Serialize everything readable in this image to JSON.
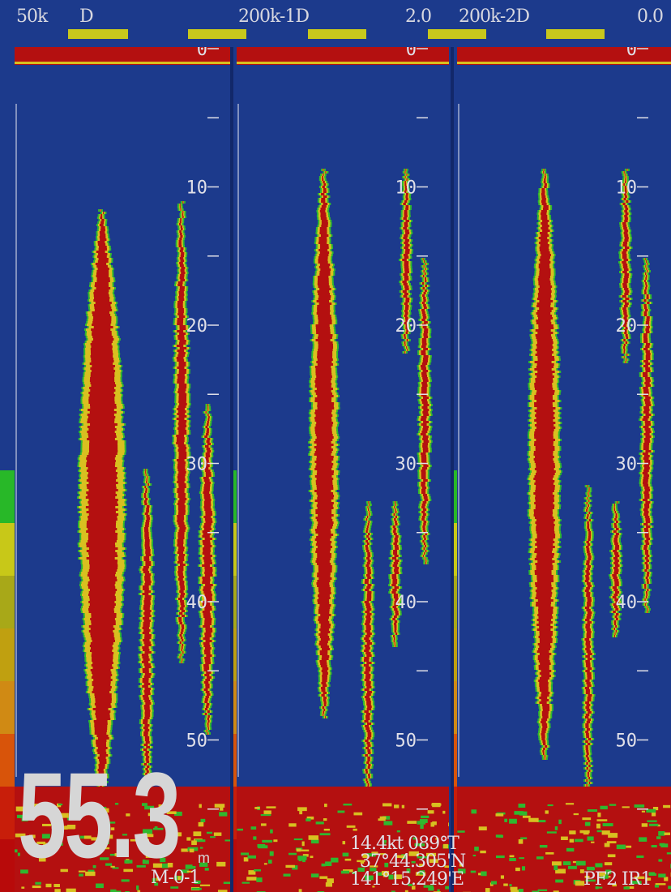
{
  "header": {
    "ch1_freq": "50k",
    "ch1_mode": "D",
    "ch2_label": "200k-1D",
    "ch2_value": "2.0",
    "ch3_label": "200k-2D",
    "ch3_value": "0.0"
  },
  "scale": {
    "depth_labels": [
      "0",
      "10",
      "20",
      "30",
      "40",
      "50"
    ]
  },
  "readouts": {
    "depth_value": "55.3",
    "depth_unit": "m",
    "mode_code": "M-0-1",
    "speed_heading": "14.4kt 089°T",
    "latitude": "37°44.305'N",
    "longitude": "141°15.249'E",
    "status_code": "PF2  IR1"
  },
  "colors": {
    "background": "#1c3a8c",
    "strong_echo": "#b41010",
    "medium_echo": "#d8c020",
    "weak_echo": "#2fb82f",
    "gain_bar": "#c8c81c"
  },
  "colorbar": [
    "#b80a0a",
    "#c81e0a",
    "#d8540a",
    "#d08a14",
    "#c0a010",
    "#a8a818",
    "#c8c818",
    "#28b828"
  ]
}
